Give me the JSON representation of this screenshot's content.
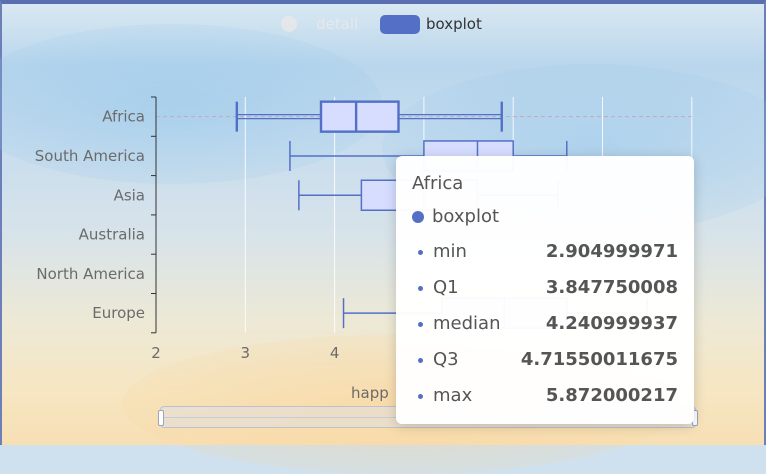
{
  "legend": {
    "items": [
      {
        "name": "detail",
        "color": "#f0f0f0",
        "active": false
      },
      {
        "name": "boxplot",
        "color": "#5470c6",
        "active": true
      }
    ]
  },
  "chart_data": {
    "type": "boxplot",
    "orientation": "horizontal",
    "categories": [
      "Africa",
      "South America",
      "Asia",
      "Australia",
      "North America",
      "Europe"
    ],
    "xaxis": {
      "label": "happ",
      "ticks": [
        "2",
        "3",
        "4"
      ],
      "min": 2,
      "max": 8
    },
    "series": [
      {
        "name": "boxplot",
        "color": "#5470c6",
        "fill": "#d6ddff",
        "boxes": [
          {
            "category": "Africa",
            "min": 2.904999971,
            "q1": 3.847750008,
            "median": 4.240999937,
            "q3": 4.71550011675,
            "max": 5.872000217
          },
          {
            "category": "South America",
            "min": 3.5,
            "q1": 5.0,
            "median": 5.6,
            "q3": 6.0,
            "max": 6.6
          },
          {
            "category": "Asia",
            "min": 3.6,
            "q1": 4.3,
            "median": 5.0,
            "q3": 5.6,
            "max": 6.5
          },
          {
            "category": "Europe",
            "min": 4.1,
            "q1": 5.2,
            "median": 5.9,
            "q3": 6.6,
            "max": 7.5
          }
        ]
      }
    ],
    "grid": true,
    "legend_position": "top-center"
  },
  "tooltip": {
    "title": "Africa",
    "series_name": "boxplot",
    "series_color": "#5470c6",
    "rows": [
      {
        "label": "min",
        "value": "2.904999971"
      },
      {
        "label": "Q1",
        "value": "3.847750008"
      },
      {
        "label": "median",
        "value": "4.240999937"
      },
      {
        "label": "Q3",
        "value": "4.71550011675"
      },
      {
        "label": "max",
        "value": "5.872000217"
      }
    ]
  }
}
